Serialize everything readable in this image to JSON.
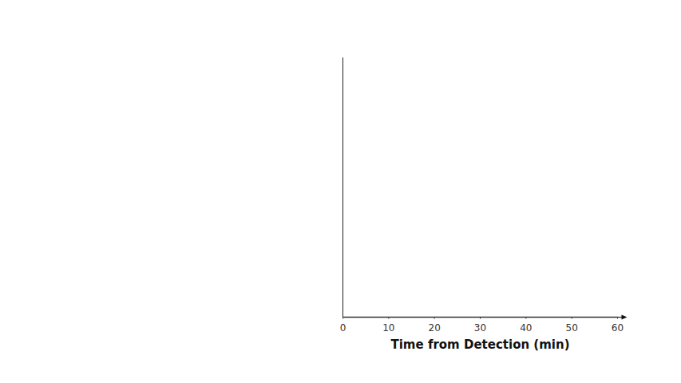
{
  "chart_data": {
    "type": "line",
    "x_label": "Time from Detection (min)",
    "xlim": [
      0,
      60
    ],
    "xticks": [
      0,
      10,
      20,
      30,
      40,
      50,
      60
    ],
    "tick_labels": "x"
  }
}
